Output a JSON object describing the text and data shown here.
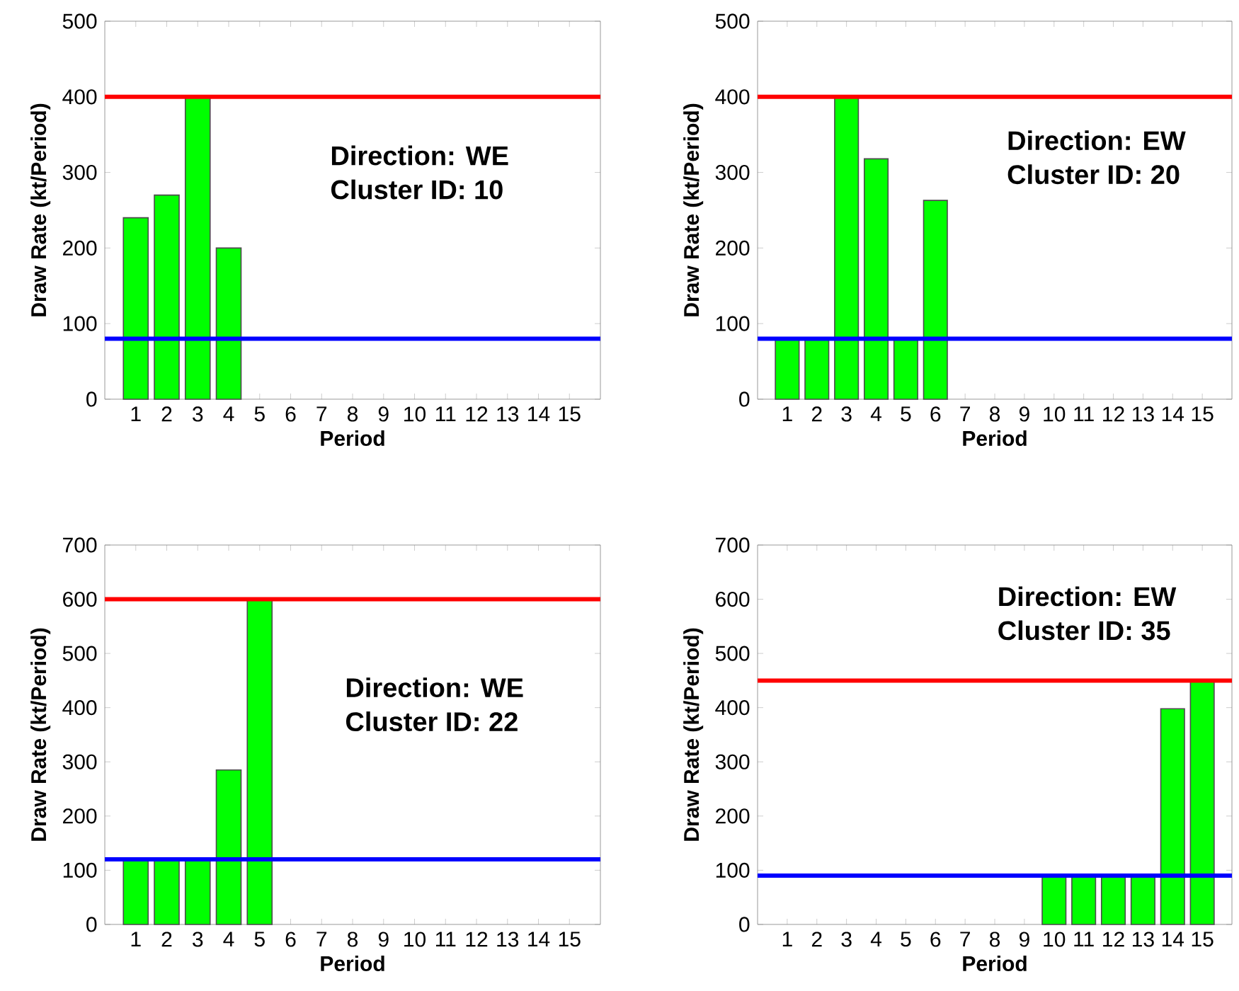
{
  "chart_data": [
    {
      "type": "bar",
      "categories": [
        "1",
        "2",
        "3",
        "4",
        "5",
        "6",
        "7",
        "8",
        "9",
        "10",
        "11",
        "12",
        "13",
        "14",
        "15"
      ],
      "values": [
        240,
        270,
        400,
        200,
        null,
        null,
        null,
        null,
        null,
        null,
        null,
        null,
        null,
        null,
        null
      ],
      "color": "#00ff00",
      "ylim": [
        0,
        500
      ],
      "yticks": [
        0,
        100,
        200,
        300,
        400,
        500
      ],
      "xlabel": "Period",
      "ylabel": "Draw Rate (kt/Period)",
      "ref_lines": [
        {
          "axis": "y",
          "value": 400,
          "color": "#ff0000"
        },
        {
          "axis": "y",
          "value": 80,
          "color": "#0000ff"
        }
      ],
      "annotations": [
        "Direction: WE",
        "Cluster ID: 10"
      ]
    },
    {
      "type": "bar",
      "categories": [
        "1",
        "2",
        "3",
        "4",
        "5",
        "6",
        "7",
        "8",
        "9",
        "10",
        "11",
        "12",
        "13",
        "14",
        "15"
      ],
      "values": [
        80,
        80,
        400,
        318,
        80,
        263,
        null,
        null,
        null,
        null,
        null,
        null,
        null,
        null,
        null
      ],
      "color": "#00ff00",
      "ylim": [
        0,
        500
      ],
      "yticks": [
        0,
        100,
        200,
        300,
        400,
        500
      ],
      "xlabel": "Period",
      "ylabel": "Draw Rate (kt/Period)",
      "ref_lines": [
        {
          "axis": "y",
          "value": 400,
          "color": "#ff0000"
        },
        {
          "axis": "y",
          "value": 80,
          "color": "#0000ff"
        }
      ],
      "annotations": [
        "Direction: EW",
        "Cluster ID: 20"
      ]
    },
    {
      "type": "bar",
      "categories": [
        "1",
        "2",
        "3",
        "4",
        "5",
        "6",
        "7",
        "8",
        "9",
        "10",
        "11",
        "12",
        "13",
        "14",
        "15"
      ],
      "values": [
        120,
        120,
        120,
        285,
        600,
        null,
        null,
        null,
        null,
        null,
        null,
        null,
        null,
        null,
        null
      ],
      "color": "#00ff00",
      "ylim": [
        0,
        700
      ],
      "yticks": [
        0,
        100,
        200,
        300,
        400,
        500,
        600,
        700
      ],
      "xlabel": "Period",
      "ylabel": "Draw Rate (kt/Period)",
      "ref_lines": [
        {
          "axis": "y",
          "value": 600,
          "color": "#ff0000"
        },
        {
          "axis": "y",
          "value": 120,
          "color": "#0000ff"
        }
      ],
      "annotations": [
        "Direction: WE",
        "Cluster ID: 22"
      ]
    },
    {
      "type": "bar",
      "categories": [
        "1",
        "2",
        "3",
        "4",
        "5",
        "6",
        "7",
        "8",
        "9",
        "10",
        "11",
        "12",
        "13",
        "14",
        "15"
      ],
      "values": [
        null,
        null,
        null,
        null,
        null,
        null,
        null,
        null,
        null,
        90,
        90,
        90,
        90,
        398,
        450
      ],
      "color": "#00ff00",
      "ylim": [
        0,
        700
      ],
      "yticks": [
        0,
        100,
        200,
        300,
        400,
        500,
        600,
        700
      ],
      "xlabel": "Period",
      "ylabel": "Draw Rate (kt/Period)",
      "ref_lines": [
        {
          "axis": "y",
          "value": 450,
          "color": "#ff0000"
        },
        {
          "axis": "y",
          "value": 90,
          "color": "#0000ff"
        }
      ],
      "annotations": [
        "Direction: EW",
        "Cluster ID: 35"
      ]
    }
  ]
}
